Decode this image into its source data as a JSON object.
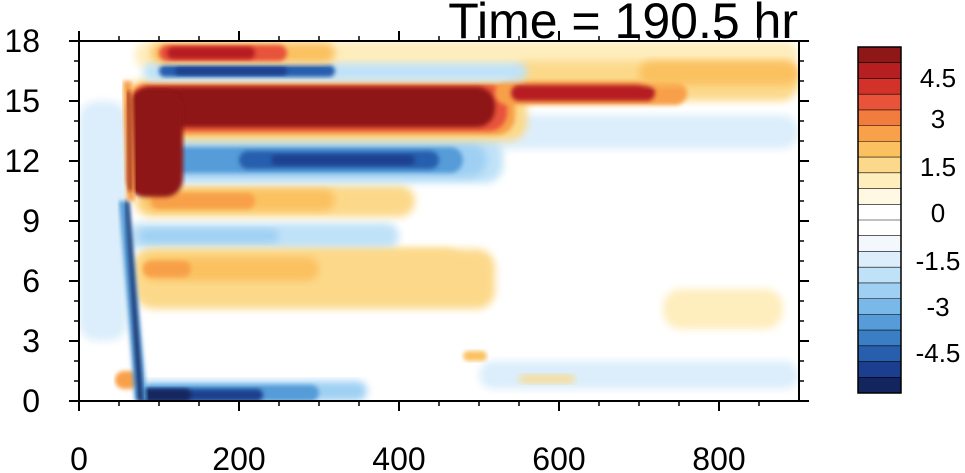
{
  "chart_data": {
    "type": "heatmap",
    "title": "Time = 190.5 hr",
    "xlabel": "",
    "ylabel": "",
    "xlim": [
      0,
      900
    ],
    "ylim": [
      0,
      18
    ],
    "x_ticks": [
      "0",
      "200",
      "400",
      "600",
      "800"
    ],
    "y_ticks": [
      "0",
      "3",
      "6",
      "9",
      "12",
      "15",
      "18"
    ],
    "colorbar": {
      "range": [
        -6,
        6
      ],
      "labels": [
        "4.5",
        "3",
        "1.5",
        "0",
        "-1.5",
        "-3",
        "-4.5"
      ],
      "colors": [
        "#8e1818",
        "#b61f22",
        "#d3322b",
        "#e8533a",
        "#f27c3e",
        "#f8a04a",
        "#fbc160",
        "#fcd98a",
        "#feedbd",
        "#fff9e4",
        "#ffffff",
        "#ffffff",
        "#f2f8fd",
        "#dceefb",
        "#c0e2f8",
        "#9fd0f3",
        "#79b8e9",
        "#559cd8",
        "#3a7ec6",
        "#275fae",
        "#1b3f8e",
        "#13255f"
      ]
    },
    "features": [
      {
        "name": "upper-positive-band",
        "sign": "positive",
        "y_center": 14.5,
        "x_range": [
          65,
          540
        ],
        "peak": 6
      },
      {
        "name": "upper-positive-extension",
        "sign": "positive",
        "y_center": 15.5,
        "x_range": [
          540,
          900
        ],
        "peak": 4
      },
      {
        "name": "top-positive-band",
        "sign": "positive",
        "y_center": 17.3,
        "x_range": [
          90,
          320
        ],
        "peak": 4.5
      },
      {
        "name": "top-negative-band",
        "sign": "negative",
        "y_center": 16.5,
        "x_range": [
          80,
          550
        ],
        "peak": -5
      },
      {
        "name": "middle-negative-band",
        "sign": "negative",
        "y_center": 12,
        "x_range": [
          70,
          530
        ],
        "peak": -5
      },
      {
        "name": "middle-positive-band",
        "sign": "positive",
        "y_center": 10,
        "x_range": [
          70,
          400
        ],
        "peak": 2.5
      },
      {
        "name": "lower-negative-band",
        "sign": "negative",
        "y_center": 8.2,
        "x_range": [
          60,
          400
        ],
        "peak": -2
      },
      {
        "name": "lower-positive-band",
        "sign": "positive",
        "y_center": 6.5,
        "x_range": [
          70,
          480
        ],
        "peak": 3
      },
      {
        "name": "surface-negative-band",
        "sign": "negative",
        "y_center": 0.4,
        "x_range": [
          75,
          340
        ],
        "peak": -6
      },
      {
        "name": "front-negative-line",
        "sign": "negative",
        "x_range": [
          55,
          80
        ],
        "y_range": [
          0,
          10
        ],
        "peak": -6
      },
      {
        "name": "front-positive-line",
        "sign": "positive",
        "x_range": [
          55,
          70
        ],
        "y_range": [
          10,
          16
        ],
        "peak": 6
      }
    ]
  }
}
